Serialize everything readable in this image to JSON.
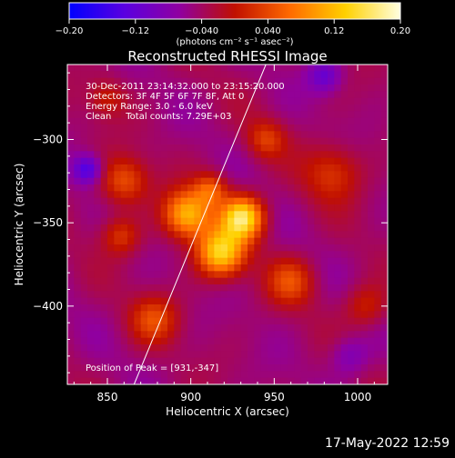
{
  "chart_data": {
    "type": "heatmap",
    "title": "Reconstructed RHESSI Image",
    "xlabel": "Heliocentric X (arcsec)",
    "ylabel": "Heliocentric Y (arcsec)",
    "xlim": [
      826,
      1018
    ],
    "ylim": [
      -447,
      -255
    ],
    "x_ticks": [
      850,
      900,
      950,
      1000
    ],
    "y_ticks": [
      -300,
      -350,
      -400
    ],
    "x_tick_labels": [
      "850",
      "900",
      "950",
      "1000"
    ],
    "y_tick_labels": [
      "−300",
      "−350",
      "−400"
    ],
    "colorbar": {
      "range": [
        -0.2,
        0.2
      ],
      "ticks": [
        -0.2,
        -0.12,
        -0.04,
        0.04,
        0.12,
        0.2
      ],
      "tick_labels": [
        "−0.20",
        "−0.12",
        "−0.040",
        "0.040",
        "0.12",
        "0.20"
      ],
      "unit_label": "(photons cm⁻² s⁻¹ asec⁻²)",
      "colors": [
        "#0000ff",
        "#5a00e0",
        "#9000a0",
        "#c01000",
        "#ff6a00",
        "#ffd000",
        "#ffffe0"
      ]
    },
    "annotations": [
      "30-Dec-2011 23:14:32.000 to 23:15:20.000",
      "Detectors: 3F 4F 5F 6F 7F 8F, Att 0",
      "Energy Range: 3.0 - 6.0 keV",
      "Clean     Total counts: 7.29E+03"
    ],
    "peak_label": "Position of Peak = [931,-347]",
    "peak": [
      931,
      -347
    ],
    "limb_line": [
      [
        866,
        -447
      ],
      [
        945,
        -255
      ]
    ],
    "sources": [
      {
        "x": 931,
        "y": -347,
        "sigma": 9,
        "amp": 0.2
      },
      {
        "x": 918,
        "y": -368,
        "sigma": 10,
        "amp": 0.18
      },
      {
        "x": 898,
        "y": -345,
        "sigma": 10,
        "amp": 0.16
      },
      {
        "x": 912,
        "y": -330,
        "sigma": 7,
        "amp": 0.09
      },
      {
        "x": 860,
        "y": -325,
        "sigma": 10,
        "amp": 0.09
      },
      {
        "x": 858,
        "y": -358,
        "sigma": 8,
        "amp": 0.07
      },
      {
        "x": 878,
        "y": -408,
        "sigma": 10,
        "amp": 0.08
      },
      {
        "x": 960,
        "y": -385,
        "sigma": 10,
        "amp": 0.08
      },
      {
        "x": 985,
        "y": -320,
        "sigma": 12,
        "amp": 0.07
      },
      {
        "x": 945,
        "y": -300,
        "sigma": 8,
        "amp": 0.07
      },
      {
        "x": 1005,
        "y": -400,
        "sigma": 9,
        "amp": 0.06
      },
      {
        "x": 850,
        "y": -275,
        "sigma": 8,
        "amp": 0.05
      },
      {
        "x": 838,
        "y": -318,
        "sigma": 6,
        "amp": -0.1
      },
      {
        "x": 980,
        "y": -262,
        "sigma": 7,
        "amp": -0.07
      },
      {
        "x": 995,
        "y": -430,
        "sigma": 8,
        "amp": -0.05
      }
    ]
  },
  "timestamp": "17-May-2022 12:59"
}
